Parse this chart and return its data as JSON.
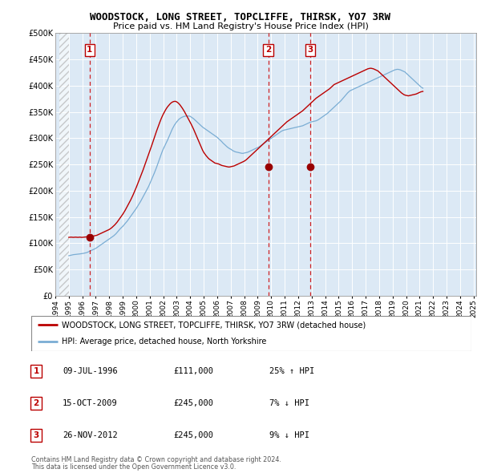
{
  "title": "WOODSTOCK, LONG STREET, TOPCLIFFE, THIRSK, YO7 3RW",
  "subtitle": "Price paid vs. HM Land Registry's House Price Index (HPI)",
  "ylim": [
    0,
    500000
  ],
  "yticks": [
    0,
    50000,
    100000,
    150000,
    200000,
    250000,
    300000,
    350000,
    400000,
    450000,
    500000
  ],
  "ytick_labels": [
    "£0",
    "£50K",
    "£100K",
    "£150K",
    "£200K",
    "£250K",
    "£300K",
    "£350K",
    "£400K",
    "£450K",
    "£500K"
  ],
  "xlim_left": 1994.3,
  "xlim_right": 2025.2,
  "background_color": "#ffffff",
  "plot_bg_color": "#dce9f5",
  "grid_color": "#ffffff",
  "red_line_color": "#bb0000",
  "blue_line_color": "#7aadd4",
  "sale_marker_color": "#990000",
  "dashed_line_color": "#cc0000",
  "sale_year_floats": [
    1996.54,
    2009.79,
    2012.91
  ],
  "sale_prices": [
    111000,
    245000,
    245000
  ],
  "sale_labels": [
    "1",
    "2",
    "3"
  ],
  "sale_info": [
    {
      "label": "1",
      "date": "09-JUL-1996",
      "price": "£111,000",
      "hpi": "25% ↑ HPI"
    },
    {
      "label": "2",
      "date": "15-OCT-2009",
      "price": "£245,000",
      "hpi": "7% ↓ HPI"
    },
    {
      "label": "3",
      "date": "26-NOV-2012",
      "price": "£245,000",
      "hpi": "9% ↓ HPI"
    }
  ],
  "legend_line1": "WOODSTOCK, LONG STREET, TOPCLIFFE, THIRSK, YO7 3RW (detached house)",
  "legend_line2": "HPI: Average price, detached house, North Yorkshire",
  "footer1": "Contains HM Land Registry data © Crown copyright and database right 2024.",
  "footer2": "This data is licensed under the Open Government Licence v3.0.",
  "hpi_monthly": {
    "start": 1995.0,
    "step": 0.08333,
    "values": [
      76000,
      76500,
      77000,
      77500,
      78000,
      78200,
      78500,
      78800,
      79000,
      79200,
      79500,
      79800,
      80000,
      80500,
      81000,
      81500,
      82000,
      83000,
      84000,
      85000,
      86000,
      87000,
      88000,
      89000,
      90000,
      91500,
      93000,
      94500,
      96000,
      97500,
      99000,
      100500,
      102000,
      103500,
      105000,
      106500,
      108000,
      109500,
      111000,
      112500,
      114000,
      116000,
      118000,
      120500,
      123000,
      125500,
      128000,
      130000,
      132000,
      134500,
      137000,
      139500,
      142000,
      145000,
      148000,
      151000,
      154000,
      157000,
      160000,
      163000,
      166000,
      169500,
      173000,
      176500,
      180000,
      184000,
      188000,
      192000,
      196000,
      200000,
      204000,
      208000,
      213000,
      218000,
      223000,
      228000,
      233000,
      238500,
      244000,
      250000,
      256000,
      262000,
      268000,
      274000,
      279000,
      283500,
      288000,
      292500,
      297000,
      302000,
      307000,
      312000,
      317000,
      321000,
      325000,
      328000,
      331000,
      333500,
      336000,
      337500,
      339000,
      340000,
      341000,
      341500,
      342000,
      342000,
      342000,
      342000,
      341500,
      340000,
      338500,
      337000,
      335000,
      333000,
      331000,
      329000,
      327000,
      325000,
      323000,
      321000,
      319500,
      318000,
      316500,
      315000,
      313500,
      312000,
      310500,
      309000,
      307500,
      306000,
      304500,
      303000,
      301500,
      299500,
      297500,
      295500,
      293500,
      291000,
      289000,
      287000,
      285000,
      283000,
      281500,
      280000,
      279000,
      277500,
      276000,
      275000,
      274000,
      273500,
      273000,
      272500,
      272000,
      271500,
      271000,
      271000,
      271500,
      272000,
      272500,
      273000,
      274000,
      275000,
      276000,
      277000,
      278000,
      279000,
      280000,
      281000,
      282000,
      283000,
      284500,
      286000,
      287500,
      289000,
      290500,
      292000,
      293500,
      295000,
      296500,
      298000,
      299500,
      301000,
      302500,
      304000,
      305500,
      307000,
      308500,
      310000,
      311500,
      313000,
      314000,
      315000,
      315500,
      316000,
      316500,
      317000,
      317500,
      318000,
      318500,
      319000,
      319500,
      320000,
      320500,
      321000,
      321500,
      322000,
      322500,
      323000,
      323500,
      324500,
      325500,
      326500,
      327500,
      328500,
      329500,
      330500,
      331000,
      331500,
      332000,
      332500,
      333000,
      334000,
      335000,
      336500,
      338000,
      339500,
      341000,
      342500,
      344000,
      345500,
      347000,
      349000,
      351000,
      353000,
      355000,
      357000,
      359000,
      361000,
      363000,
      365000,
      367000,
      369000,
      371000,
      373500,
      376000,
      378500,
      381000,
      383500,
      386000,
      388000,
      390000,
      391000,
      392000,
      393000,
      394000,
      395000,
      396000,
      397000,
      398000,
      399000,
      400000,
      401000,
      402000,
      403000,
      404000,
      405000,
      406000,
      407000,
      408000,
      409000,
      410000,
      411000,
      412000,
      413000,
      414000,
      415000,
      416000,
      417000,
      418000,
      419000,
      420000,
      421000,
      422000,
      423000,
      424000,
      425000,
      426000,
      427000,
      428000,
      429000,
      430000,
      430500,
      431000,
      431000,
      430500,
      430000,
      429000,
      428000,
      427000,
      426000,
      424000,
      422000,
      420000,
      418000,
      416000,
      414000,
      412000,
      410000,
      408000,
      406000,
      404000,
      402000,
      400000,
      398000,
      396500,
      395000
    ]
  },
  "red_monthly": {
    "start": 1995.0,
    "step": 0.08333,
    "values": [
      111000,
      111200,
      111400,
      111200,
      111000,
      111200,
      111400,
      111200,
      111000,
      111200,
      111400,
      111000,
      111000,
      111200,
      111500,
      111800,
      112000,
      112200,
      112500,
      112800,
      113000,
      113200,
      113500,
      114000,
      114500,
      115000,
      116000,
      117000,
      118000,
      119000,
      120000,
      121000,
      122000,
      123000,
      124000,
      125000,
      126000,
      127500,
      129000,
      131000,
      133000,
      135000,
      137500,
      140000,
      143000,
      146000,
      149000,
      152000,
      155000,
      158500,
      162000,
      166000,
      170000,
      174000,
      178000,
      182000,
      186500,
      191000,
      196000,
      201000,
      206000,
      211500,
      217000,
      222500,
      228000,
      233500,
      239000,
      245000,
      251000,
      257000,
      263000,
      269000,
      275000,
      281000,
      287500,
      294000,
      300500,
      307000,
      313000,
      319000,
      325000,
      330500,
      336000,
      341000,
      345500,
      349500,
      353500,
      357000,
      360000,
      362500,
      365000,
      367000,
      368500,
      369500,
      370000,
      370000,
      369000,
      367500,
      365500,
      363000,
      360000,
      357000,
      353500,
      350000,
      346000,
      342000,
      338000,
      334000,
      330000,
      326000,
      321500,
      317000,
      312000,
      307000,
      302000,
      297000,
      292000,
      287000,
      282000,
      277000,
      273000,
      270000,
      267000,
      264500,
      262000,
      260000,
      258500,
      257000,
      255500,
      254000,
      252500,
      252000,
      251500,
      251000,
      250000,
      249000,
      248000,
      247500,
      247000,
      246500,
      246000,
      245500,
      245000,
      245000,
      245500,
      246000,
      246500,
      247000,
      248000,
      249000,
      250000,
      251000,
      252000,
      253000,
      254000,
      255000,
      256000,
      257500,
      259000,
      261000,
      263000,
      265000,
      267000,
      269000,
      271000,
      273000,
      275000,
      277000,
      279000,
      281000,
      283000,
      285000,
      287000,
      289000,
      291000,
      293000,
      295000,
      297000,
      299000,
      301000,
      303000,
      305000,
      307000,
      309000,
      311000,
      313000,
      315000,
      317000,
      319000,
      321000,
      323000,
      325000,
      327000,
      329000,
      331000,
      332500,
      334000,
      335500,
      337000,
      338500,
      340000,
      341500,
      343000,
      344500,
      346000,
      347500,
      349000,
      350500,
      352000,
      354000,
      356000,
      358000,
      360000,
      362000,
      364000,
      366000,
      368000,
      370000,
      372000,
      374000,
      376000,
      377500,
      379000,
      380500,
      382000,
      383500,
      385000,
      386500,
      388000,
      389500,
      391000,
      392500,
      394000,
      396000,
      398000,
      400000,
      402000,
      403000,
      404000,
      405000,
      406000,
      407000,
      408000,
      409000,
      410000,
      411000,
      412000,
      413000,
      414000,
      415000,
      416000,
      417000,
      418000,
      419000,
      420000,
      421000,
      422000,
      423000,
      424000,
      425000,
      426000,
      427000,
      428000,
      429000,
      430000,
      431000,
      432000,
      432500,
      433000,
      433000,
      432500,
      432000,
      431000,
      430000,
      429000,
      428000,
      426000,
      424000,
      422000,
      420000,
      418000,
      416000,
      414000,
      412000,
      410000,
      408000,
      406000,
      404000,
      402000,
      400000,
      398000,
      396000,
      394000,
      392000,
      390000,
      388000,
      386000,
      384500,
      383000,
      382000,
      381500,
      381000,
      380500,
      381000,
      381500,
      382000,
      382500,
      383000,
      383500,
      384000,
      385000,
      386000,
      387000,
      388000,
      388500,
      389000
    ]
  }
}
